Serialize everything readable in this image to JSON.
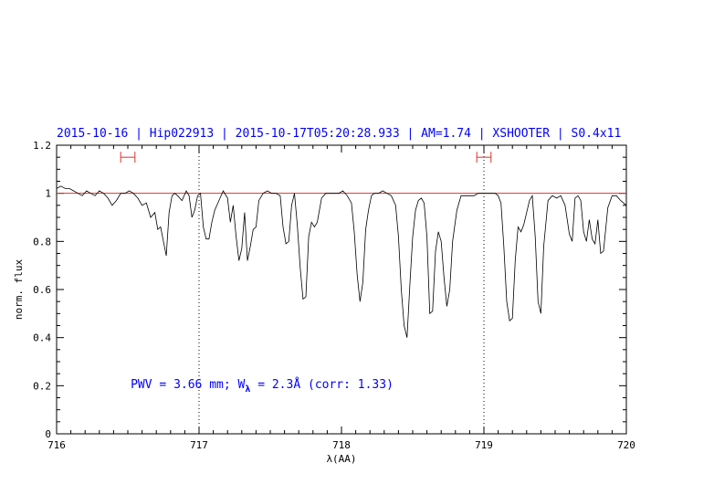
{
  "chart_data": {
    "type": "line",
    "title": "2015-10-16 | Hip022913 | 2015-10-17T05:20:28.933 | AM=1.74 | XSHOOTER | S0.4x11",
    "xlabel": "λ(AA)",
    "ylabel": "norm. flux",
    "xlim": [
      716,
      720
    ],
    "ylim": [
      0,
      1.2
    ],
    "x_ticks": [
      716,
      717,
      718,
      719,
      720
    ],
    "x_tick_labels": [
      "716",
      "717",
      "718",
      "719",
      "720"
    ],
    "y_ticks": [
      0,
      0.2,
      0.4,
      0.6,
      0.8,
      1,
      1.2
    ],
    "y_tick_labels": [
      "0",
      "0.2",
      "0.4",
      "0.6",
      "0.8",
      "1",
      "1.2"
    ],
    "grid": false,
    "continuum_level": 1.0,
    "continuum_color": "#e03030",
    "spectrum_color": "#000000",
    "vertical_markers": [
      717.0,
      719.0
    ],
    "continuum_windows": [
      {
        "x0": 716.45,
        "x1": 716.55,
        "y": 1.15
      },
      {
        "x0": 718.95,
        "x1": 719.05,
        "y": 1.15
      }
    ],
    "annotation": {
      "text_prefix": "PWV = 3.66 mm; W",
      "subscript": "λ",
      "text_suffix": " = 2.3Å (corr: 1.33)",
      "x": 716.52,
      "y": 0.19
    },
    "series": [
      {
        "x": [
          716.0,
          716.03,
          716.06,
          716.09,
          716.12,
          716.15,
          716.18,
          716.21,
          716.24,
          716.27,
          716.3,
          716.33,
          716.36,
          716.39,
          716.42,
          716.45,
          716.48,
          716.51,
          716.54,
          716.57,
          716.6,
          716.63,
          716.66,
          716.69,
          716.71,
          716.73,
          716.75,
          716.77,
          716.79,
          716.81,
          716.83,
          716.85,
          716.88,
          716.91,
          716.93,
          716.95,
          716.97,
          716.99,
          717.01,
          717.03,
          717.05,
          717.07,
          717.09,
          717.11,
          717.14,
          717.17,
          717.2,
          717.22,
          717.24,
          717.26,
          717.28,
          717.3,
          717.32,
          717.34,
          717.36,
          717.38,
          717.4,
          717.42,
          717.45,
          717.48,
          717.51,
          717.54,
          717.57,
          717.59,
          717.61,
          717.63,
          717.65,
          717.67,
          717.69,
          717.71,
          717.73,
          717.75,
          717.77,
          717.79,
          717.81,
          717.83,
          717.86,
          717.89,
          717.92,
          717.95,
          717.98,
          718.01,
          718.04,
          718.07,
          718.09,
          718.11,
          718.13,
          718.15,
          718.17,
          718.19,
          718.21,
          718.23,
          718.26,
          718.29,
          718.32,
          718.35,
          718.38,
          718.4,
          718.42,
          718.44,
          718.46,
          718.48,
          718.5,
          718.52,
          718.54,
          718.56,
          718.58,
          718.6,
          718.62,
          718.64,
          718.66,
          718.68,
          718.7,
          718.72,
          718.74,
          718.76,
          718.78,
          718.81,
          718.84,
          718.87,
          718.9,
          718.93,
          718.96,
          718.99,
          719.02,
          719.05,
          719.08,
          719.1,
          719.12,
          719.14,
          719.16,
          719.18,
          719.2,
          719.22,
          719.24,
          719.26,
          719.28,
          719.3,
          719.32,
          719.34,
          719.36,
          719.38,
          719.4,
          719.42,
          719.45,
          719.48,
          719.51,
          719.54,
          719.57,
          719.6,
          719.62,
          719.64,
          719.66,
          719.68,
          719.7,
          719.72,
          719.74,
          719.76,
          719.78,
          719.8,
          719.82,
          719.84,
          719.87,
          719.9,
          719.93,
          719.96,
          720.0
        ],
        "y": [
          1.02,
          1.03,
          1.02,
          1.02,
          1.01,
          1.0,
          0.99,
          1.01,
          1.0,
          0.99,
          1.01,
          1.0,
          0.98,
          0.95,
          0.97,
          1.0,
          1.0,
          1.01,
          1.0,
          0.98,
          0.95,
          0.96,
          0.9,
          0.92,
          0.85,
          0.86,
          0.8,
          0.74,
          0.92,
          0.99,
          1.0,
          0.99,
          0.97,
          1.01,
          0.99,
          0.9,
          0.93,
          0.99,
          1.0,
          0.86,
          0.81,
          0.81,
          0.88,
          0.93,
          0.97,
          1.01,
          0.98,
          0.88,
          0.95,
          0.82,
          0.72,
          0.77,
          0.92,
          0.72,
          0.78,
          0.85,
          0.86,
          0.97,
          1.0,
          1.01,
          1.0,
          1.0,
          0.99,
          0.86,
          0.79,
          0.8,
          0.95,
          1.0,
          0.87,
          0.69,
          0.56,
          0.57,
          0.82,
          0.88,
          0.86,
          0.88,
          0.98,
          1.0,
          1.0,
          1.0,
          1.0,
          1.01,
          0.99,
          0.96,
          0.84,
          0.66,
          0.55,
          0.63,
          0.85,
          0.93,
          0.99,
          1.0,
          1.0,
          1.01,
          1.0,
          0.99,
          0.95,
          0.82,
          0.6,
          0.45,
          0.4,
          0.62,
          0.82,
          0.93,
          0.97,
          0.98,
          0.96,
          0.82,
          0.5,
          0.51,
          0.76,
          0.84,
          0.8,
          0.65,
          0.53,
          0.6,
          0.8,
          0.93,
          0.99,
          0.99,
          0.99,
          0.99,
          1.0,
          1.0,
          1.0,
          1.0,
          1.0,
          0.99,
          0.96,
          0.78,
          0.55,
          0.47,
          0.48,
          0.72,
          0.86,
          0.84,
          0.87,
          0.92,
          0.97,
          0.99,
          0.82,
          0.55,
          0.5,
          0.78,
          0.97,
          0.99,
          0.98,
          0.99,
          0.95,
          0.83,
          0.8,
          0.98,
          0.99,
          0.97,
          0.84,
          0.8,
          0.89,
          0.81,
          0.79,
          0.89,
          0.75,
          0.76,
          0.94,
          0.99,
          0.99,
          0.97,
          0.95
        ]
      }
    ]
  }
}
